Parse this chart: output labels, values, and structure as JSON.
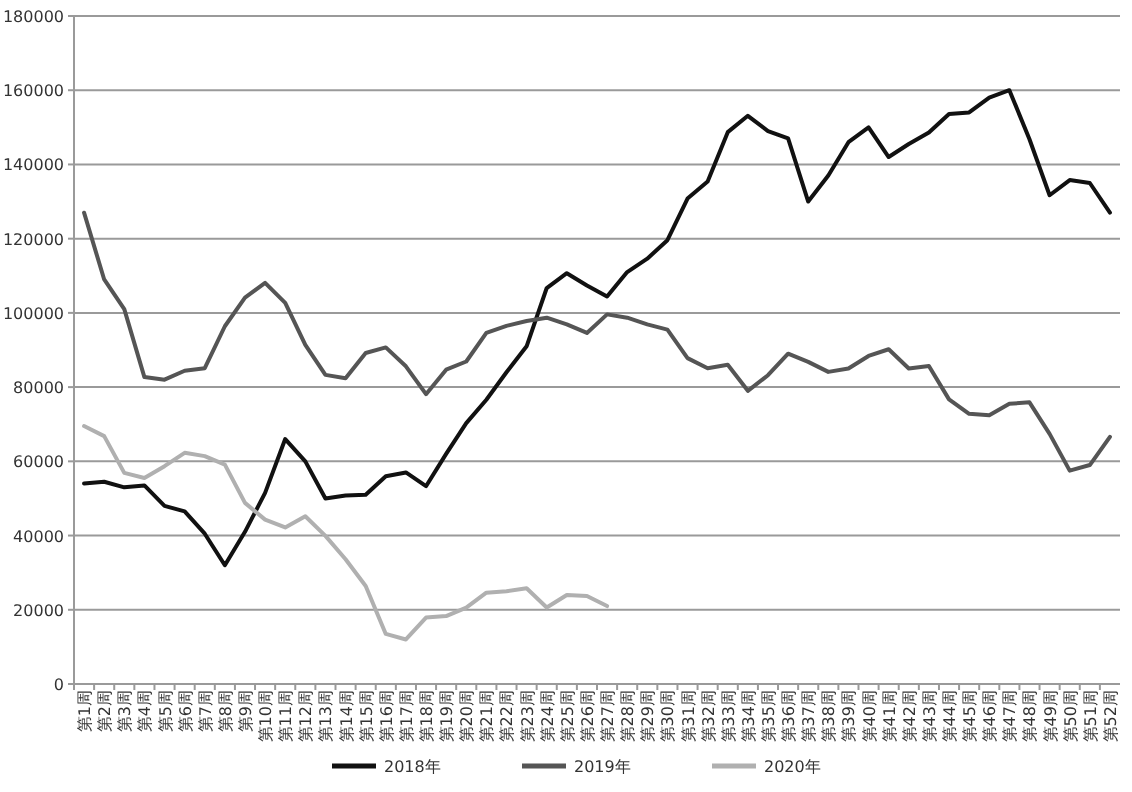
{
  "chart_data": {
    "type": "line",
    "categories": [
      "第1周",
      "第2周",
      "第3周",
      "第4周",
      "第5周",
      "第6周",
      "第7周",
      "第8周",
      "第9周",
      "第10周",
      "第11周",
      "第12周",
      "第13周",
      "第14周",
      "第15周",
      "第16周",
      "第17周",
      "第18周",
      "第19周",
      "第20周",
      "第21周",
      "第22周",
      "第23周",
      "第24周",
      "第25周",
      "第26周",
      "第27周",
      "第28周",
      "第29周",
      "第30周",
      "第31周",
      "第32周",
      "第33周",
      "第34周",
      "第35周",
      "第36周",
      "第37周",
      "第38周",
      "第39周",
      "第40周",
      "第41周",
      "第42周",
      "第43周",
      "第44周",
      "第45周",
      "第46周",
      "第47周",
      "第48周",
      "第49周",
      "第50周",
      "第51周",
      "第52周"
    ],
    "series": [
      {
        "name": "2018年",
        "color": "#111111",
        "values": [
          54000,
          54500,
          53000,
          53500,
          48000,
          46500,
          40500,
          32000,
          41000,
          51500,
          66000,
          60000,
          50000,
          50800,
          51000,
          56000,
          57000,
          53300,
          62000,
          70300,
          76600,
          84000,
          91000,
          106700,
          110700,
          107400,
          104400,
          111000,
          114600,
          119600,
          130800,
          135400,
          148700,
          153100,
          149000,
          147000,
          130000,
          137000,
          146000,
          150000,
          142000,
          145500,
          148600,
          153600,
          154000,
          158000,
          160000,
          146800,
          131700,
          135800,
          135000,
          127000
        ]
      },
      {
        "name": "2019年",
        "color": "#555555",
        "values": [
          127000,
          109000,
          101000,
          82700,
          82000,
          84400,
          85100,
          96400,
          104100,
          108100,
          102700,
          91400,
          83300,
          82400,
          89200,
          90700,
          85600,
          78100,
          84700,
          86900,
          94600,
          96500,
          97800,
          98700,
          96900,
          94600,
          99600,
          98700,
          96900,
          95500,
          87800,
          85100,
          86000,
          79000,
          83200,
          89000,
          86800,
          84100,
          85000,
          88400,
          90200,
          85000,
          85700,
          76700,
          72800,
          72400,
          75500,
          75900,
          67400,
          57500,
          59000,
          66600
        ]
      },
      {
        "name": "2020年",
        "color": "#b0b0b0",
        "values": [
          69500,
          66800,
          56900,
          55500,
          58700,
          62300,
          61400,
          59100,
          48800,
          44300,
          42200,
          45200,
          39900,
          33600,
          26400,
          13500,
          12000,
          17900,
          18300,
          20600,
          24600,
          25000,
          25800,
          20600,
          24000,
          23700,
          21000,
          null,
          null,
          null,
          null,
          null,
          null,
          null,
          null,
          null,
          null,
          null,
          null,
          null,
          null,
          null,
          null,
          null,
          null,
          null,
          null,
          null,
          null,
          null,
          null,
          null
        ]
      }
    ],
    "ylim": [
      0,
      180000
    ],
    "yticks": [
      0,
      20000,
      40000,
      60000,
      80000,
      100000,
      120000,
      140000,
      160000,
      180000
    ],
    "grid": "y",
    "legend": "bottom"
  }
}
